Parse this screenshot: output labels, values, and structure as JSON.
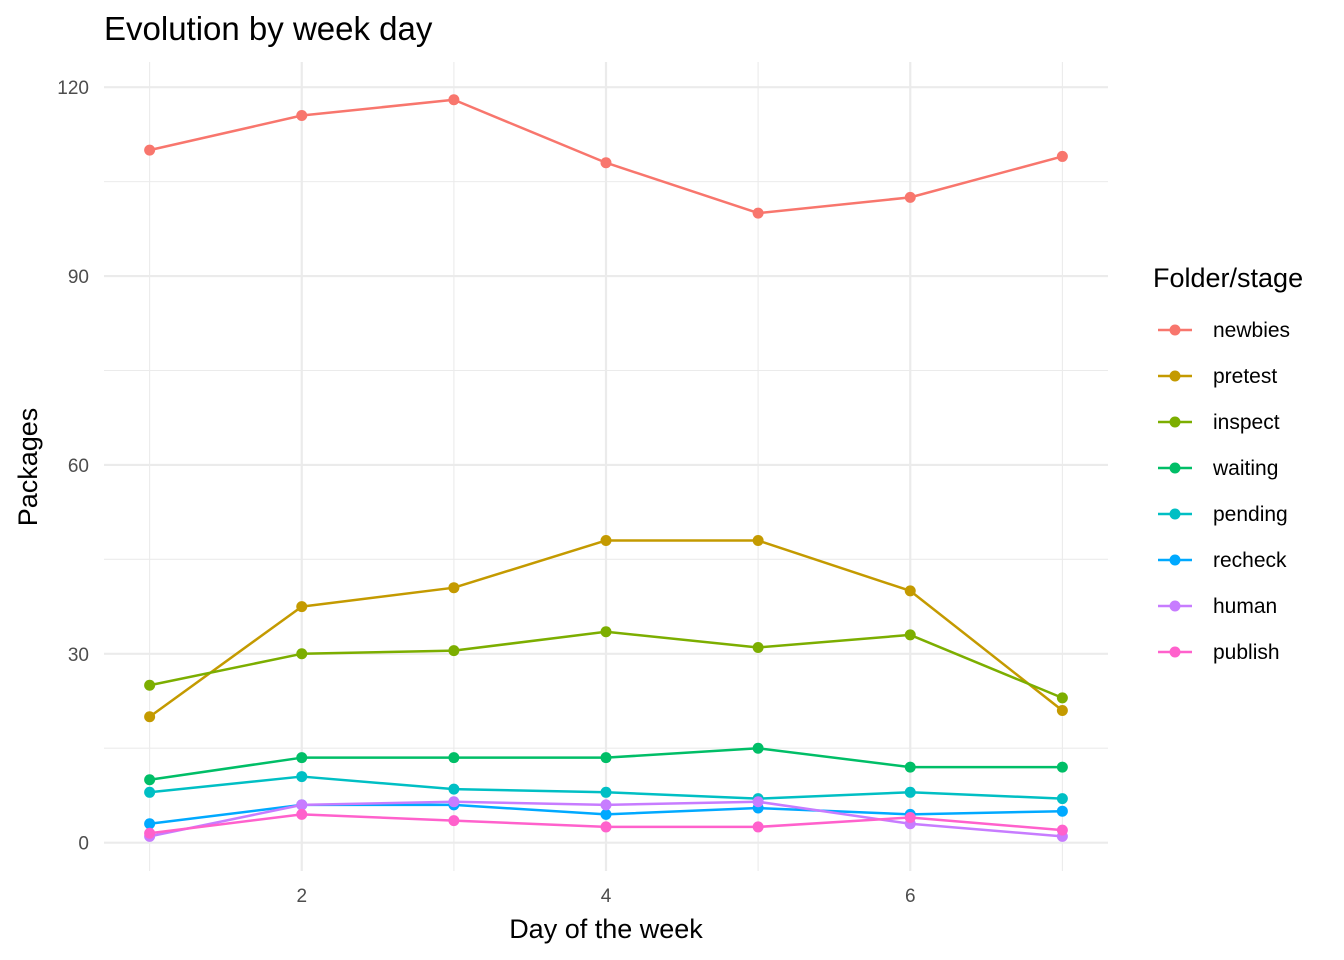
{
  "chart_data": {
    "type": "line",
    "title": "Evolution by week day",
    "xlabel": "Day of the week",
    "ylabel": "Packages",
    "x": [
      1,
      2,
      3,
      4,
      5,
      6,
      7
    ],
    "xlim": [
      0.7,
      7.3
    ],
    "ylim": [
      -4.5,
      124
    ],
    "x_ticks": [
      2,
      4,
      6
    ],
    "y_ticks": [
      0,
      30,
      60,
      90,
      120
    ],
    "grid": true,
    "legend_title": "Folder/stage",
    "legend_position": "right",
    "series": [
      {
        "name": "newbies",
        "color": "#F8766D",
        "values": [
          110,
          115.5,
          118,
          108,
          100,
          102.5,
          109
        ]
      },
      {
        "name": "pretest",
        "color": "#C49A00",
        "values": [
          20,
          37.5,
          40.5,
          48,
          48,
          40,
          21
        ]
      },
      {
        "name": "inspect",
        "color": "#7CAE00",
        "values": [
          25,
          30,
          30.5,
          33.5,
          31,
          33,
          23
        ]
      },
      {
        "name": "waiting",
        "color": "#00BE67",
        "values": [
          10,
          13.5,
          13.5,
          13.5,
          15,
          12,
          12
        ]
      },
      {
        "name": "pending",
        "color": "#00BFC4",
        "values": [
          8,
          10.5,
          8.5,
          8,
          7,
          8,
          7
        ]
      },
      {
        "name": "recheck",
        "color": "#00A9FF",
        "values": [
          3,
          6,
          6,
          4.5,
          5.5,
          4.5,
          5
        ]
      },
      {
        "name": "human",
        "color": "#C77CFF",
        "values": [
          1,
          6,
          6.5,
          6,
          6.5,
          3,
          1
        ]
      },
      {
        "name": "publish",
        "color": "#FF61CC",
        "values": [
          1.5,
          4.5,
          3.5,
          2.5,
          2.5,
          4,
          2
        ]
      }
    ]
  }
}
